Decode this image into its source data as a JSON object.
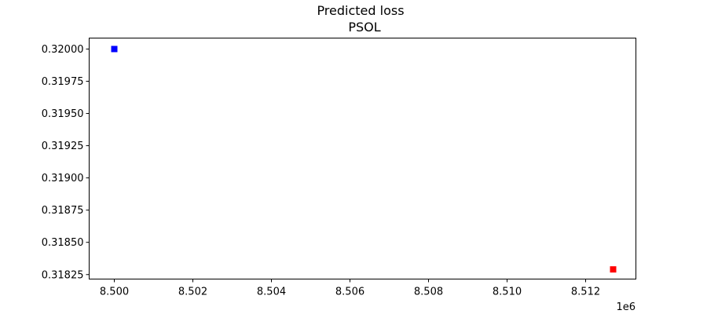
{
  "chart_data": {
    "type": "scatter",
    "title": "Predicted loss",
    "subtitle": "PSOL",
    "xlabel": "",
    "ylabel": "",
    "x_offset_text": "1e6",
    "x_tick_values": [
      8500000,
      8502000,
      8504000,
      8506000,
      8508000,
      8510000,
      8512000
    ],
    "x_tick_labels": [
      "8.500",
      "8.502",
      "8.504",
      "8.506",
      "8.508",
      "8.510",
      "8.512"
    ],
    "y_tick_values": [
      0.32,
      0.31975,
      0.3195,
      0.31925,
      0.319,
      0.31875,
      0.3185,
      0.31825
    ],
    "y_tick_labels": [
      "0.32000",
      "0.31975",
      "0.31950",
      "0.31925",
      "0.31900",
      "0.31875",
      "0.31850",
      "0.31825"
    ],
    "xlim": [
      8499360,
      8513280
    ],
    "ylim": [
      0.318215,
      0.320085
    ],
    "grid": false,
    "legend": "none",
    "points": [
      {
        "x": 8500000,
        "y": 0.32,
        "color": "#0000ff",
        "marker": "square"
      },
      {
        "x": 8512700,
        "y": 0.31829,
        "color": "#ff0000",
        "marker": "square"
      }
    ]
  }
}
